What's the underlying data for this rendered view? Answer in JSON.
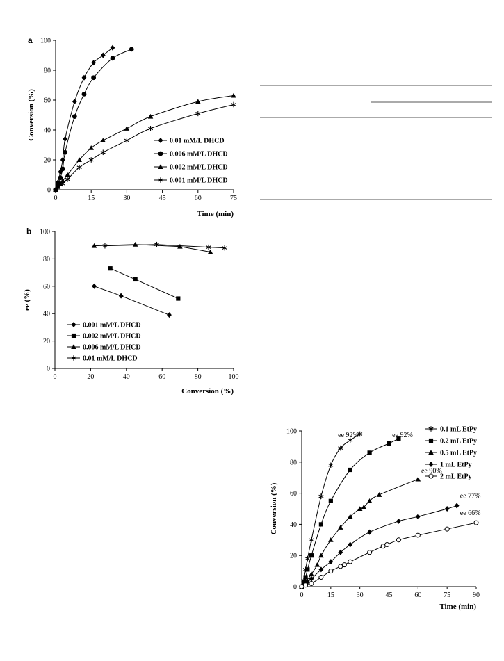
{
  "chart_data": [
    {
      "panel": "a",
      "type": "line",
      "xlabel": "Time (min)",
      "ylabel": "Conversion (%)",
      "xlim": [
        0,
        75
      ],
      "ylim": [
        0,
        100
      ],
      "xticks": [
        0,
        15,
        30,
        45,
        60,
        75
      ],
      "yticks": [
        0,
        20,
        40,
        60,
        80,
        100
      ],
      "legend": "lower-right",
      "series": [
        {
          "name": "0.01 mM/L DHCD",
          "marker": "diamond",
          "points": [
            [
              0,
              0
            ],
            [
              1,
              5
            ],
            [
              2,
              12
            ],
            [
              3,
              20
            ],
            [
              4,
              34
            ],
            [
              8,
              59
            ],
            [
              12,
              75
            ],
            [
              16,
              85
            ],
            [
              20,
              90
            ],
            [
              24,
              95
            ]
          ]
        },
        {
          "name": "0.006 mM/L DHCD",
          "marker": "circle",
          "points": [
            [
              0,
              0
            ],
            [
              1,
              3
            ],
            [
              2,
              8
            ],
            [
              3,
              14
            ],
            [
              4,
              25
            ],
            [
              8,
              49
            ],
            [
              12,
              64
            ],
            [
              16,
              75
            ],
            [
              24,
              88
            ],
            [
              32,
              94
            ]
          ]
        },
        {
          "name": "0.002 mM/L DHCD",
          "marker": "triangle",
          "points": [
            [
              0,
              0
            ],
            [
              1,
              2
            ],
            [
              2,
              4
            ],
            [
              3,
              6
            ],
            [
              5,
              10
            ],
            [
              10,
              20
            ],
            [
              15,
              28
            ],
            [
              20,
              33
            ],
            [
              30,
              41
            ],
            [
              40,
              49
            ],
            [
              60,
              59
            ],
            [
              75,
              63
            ]
          ]
        },
        {
          "name": "0.001 mM/L DHCD",
          "marker": "asterisk",
          "points": [
            [
              0,
              0
            ],
            [
              1,
              2
            ],
            [
              3,
              4
            ],
            [
              5,
              7
            ],
            [
              10,
              15
            ],
            [
              15,
              20
            ],
            [
              20,
              25
            ],
            [
              30,
              33
            ],
            [
              40,
              41
            ],
            [
              60,
              51
            ],
            [
              75,
              57
            ]
          ]
        }
      ]
    },
    {
      "panel": "b",
      "type": "line",
      "xlabel": "Conversion (%)",
      "ylabel": "ee (%)",
      "xlim": [
        0,
        100
      ],
      "ylim": [
        0,
        100
      ],
      "xticks": [
        0,
        20,
        40,
        60,
        80,
        100
      ],
      "yticks": [
        0,
        20,
        40,
        60,
        80,
        100
      ],
      "legend": "lower-left",
      "series": [
        {
          "name": "0.001 mM/L DHCD",
          "marker": "diamond",
          "points": [
            [
              22,
              60
            ],
            [
              37,
              53
            ],
            [
              64,
              39
            ]
          ]
        },
        {
          "name": "0.002 mM/L DHCD",
          "marker": "square",
          "points": [
            [
              31,
              73
            ],
            [
              45,
              65
            ],
            [
              69,
              51
            ]
          ]
        },
        {
          "name": "0.006 mM/L DHCD",
          "marker": "triangle",
          "points": [
            [
              22,
              89.5
            ],
            [
              45,
              90.5
            ],
            [
              70,
              89
            ],
            [
              87,
              85
            ]
          ]
        },
        {
          "name": "0.01 mM/L DHCD",
          "marker": "asterisk",
          "points": [
            [
              28,
              89.5
            ],
            [
              57,
              90.5
            ],
            [
              86,
              88.5
            ],
            [
              95,
              88
            ]
          ]
        }
      ]
    },
    {
      "panel": "",
      "type": "line",
      "xlabel": "Time (min)",
      "ylabel": "Conversion (%)",
      "xlim": [
        0,
        90
      ],
      "ylim": [
        0,
        100
      ],
      "xticks": [
        0,
        15,
        30,
        45,
        60,
        75,
        90
      ],
      "yticks": [
        0,
        20,
        40,
        60,
        80,
        100
      ],
      "legend": "top-right",
      "annotations": [
        "ee 92%",
        "ee 92%",
        "ee 90%",
        "ee 77%",
        "ee 66%"
      ],
      "series": [
        {
          "name": "0.1 mL EtPy",
          "marker": "asterisk",
          "ee": "ee 92%",
          "points": [
            [
              0,
              0
            ],
            [
              1,
              4
            ],
            [
              2,
              11
            ],
            [
              3,
              18
            ],
            [
              5,
              30
            ],
            [
              10,
              58
            ],
            [
              15,
              78
            ],
            [
              20,
              89
            ],
            [
              25,
              94
            ],
            [
              30,
              98
            ]
          ]
        },
        {
          "name": "0.2 mL EtPy",
          "marker": "square",
          "ee": "ee 92%",
          "points": [
            [
              0,
              0
            ],
            [
              1,
              3
            ],
            [
              2,
              6
            ],
            [
              3,
              11
            ],
            [
              5,
              20
            ],
            [
              10,
              40
            ],
            [
              15,
              55
            ],
            [
              25,
              75
            ],
            [
              35,
              86
            ],
            [
              45,
              92
            ],
            [
              50,
              95
            ]
          ]
        },
        {
          "name": "0.5 mL EtPy",
          "marker": "triangle",
          "ee": "ee 90%",
          "points": [
            [
              0,
              0
            ],
            [
              2,
              3
            ],
            [
              5,
              8
            ],
            [
              8,
              14
            ],
            [
              10,
              20
            ],
            [
              15,
              30
            ],
            [
              20,
              38
            ],
            [
              25,
              45
            ],
            [
              30,
              50
            ],
            [
              32,
              51
            ],
            [
              35,
              55
            ],
            [
              40,
              59
            ],
            [
              60,
              69
            ]
          ]
        },
        {
          "name": "1 mL EtPy",
          "marker": "diamond",
          "ee": "ee 77%",
          "points": [
            [
              0,
              0
            ],
            [
              3,
              3
            ],
            [
              5,
              5
            ],
            [
              10,
              11
            ],
            [
              15,
              16
            ],
            [
              20,
              22
            ],
            [
              25,
              27
            ],
            [
              35,
              35
            ],
            [
              50,
              42
            ],
            [
              60,
              45
            ],
            [
              75,
              50
            ],
            [
              80,
              52
            ]
          ]
        },
        {
          "name": "2 mL EtPy",
          "marker": "circle",
          "ee": "ee 66%",
          "points": [
            [
              0,
              0
            ],
            [
              2,
              1
            ],
            [
              5,
              2
            ],
            [
              10,
              6
            ],
            [
              15,
              10
            ],
            [
              20,
              13
            ],
            [
              22,
              14
            ],
            [
              25,
              16
            ],
            [
              35,
              22
            ],
            [
              42,
              26
            ],
            [
              44,
              27
            ],
            [
              50,
              30
            ],
            [
              60,
              33
            ],
            [
              75,
              37
            ],
            [
              90,
              41
            ]
          ]
        }
      ]
    }
  ]
}
